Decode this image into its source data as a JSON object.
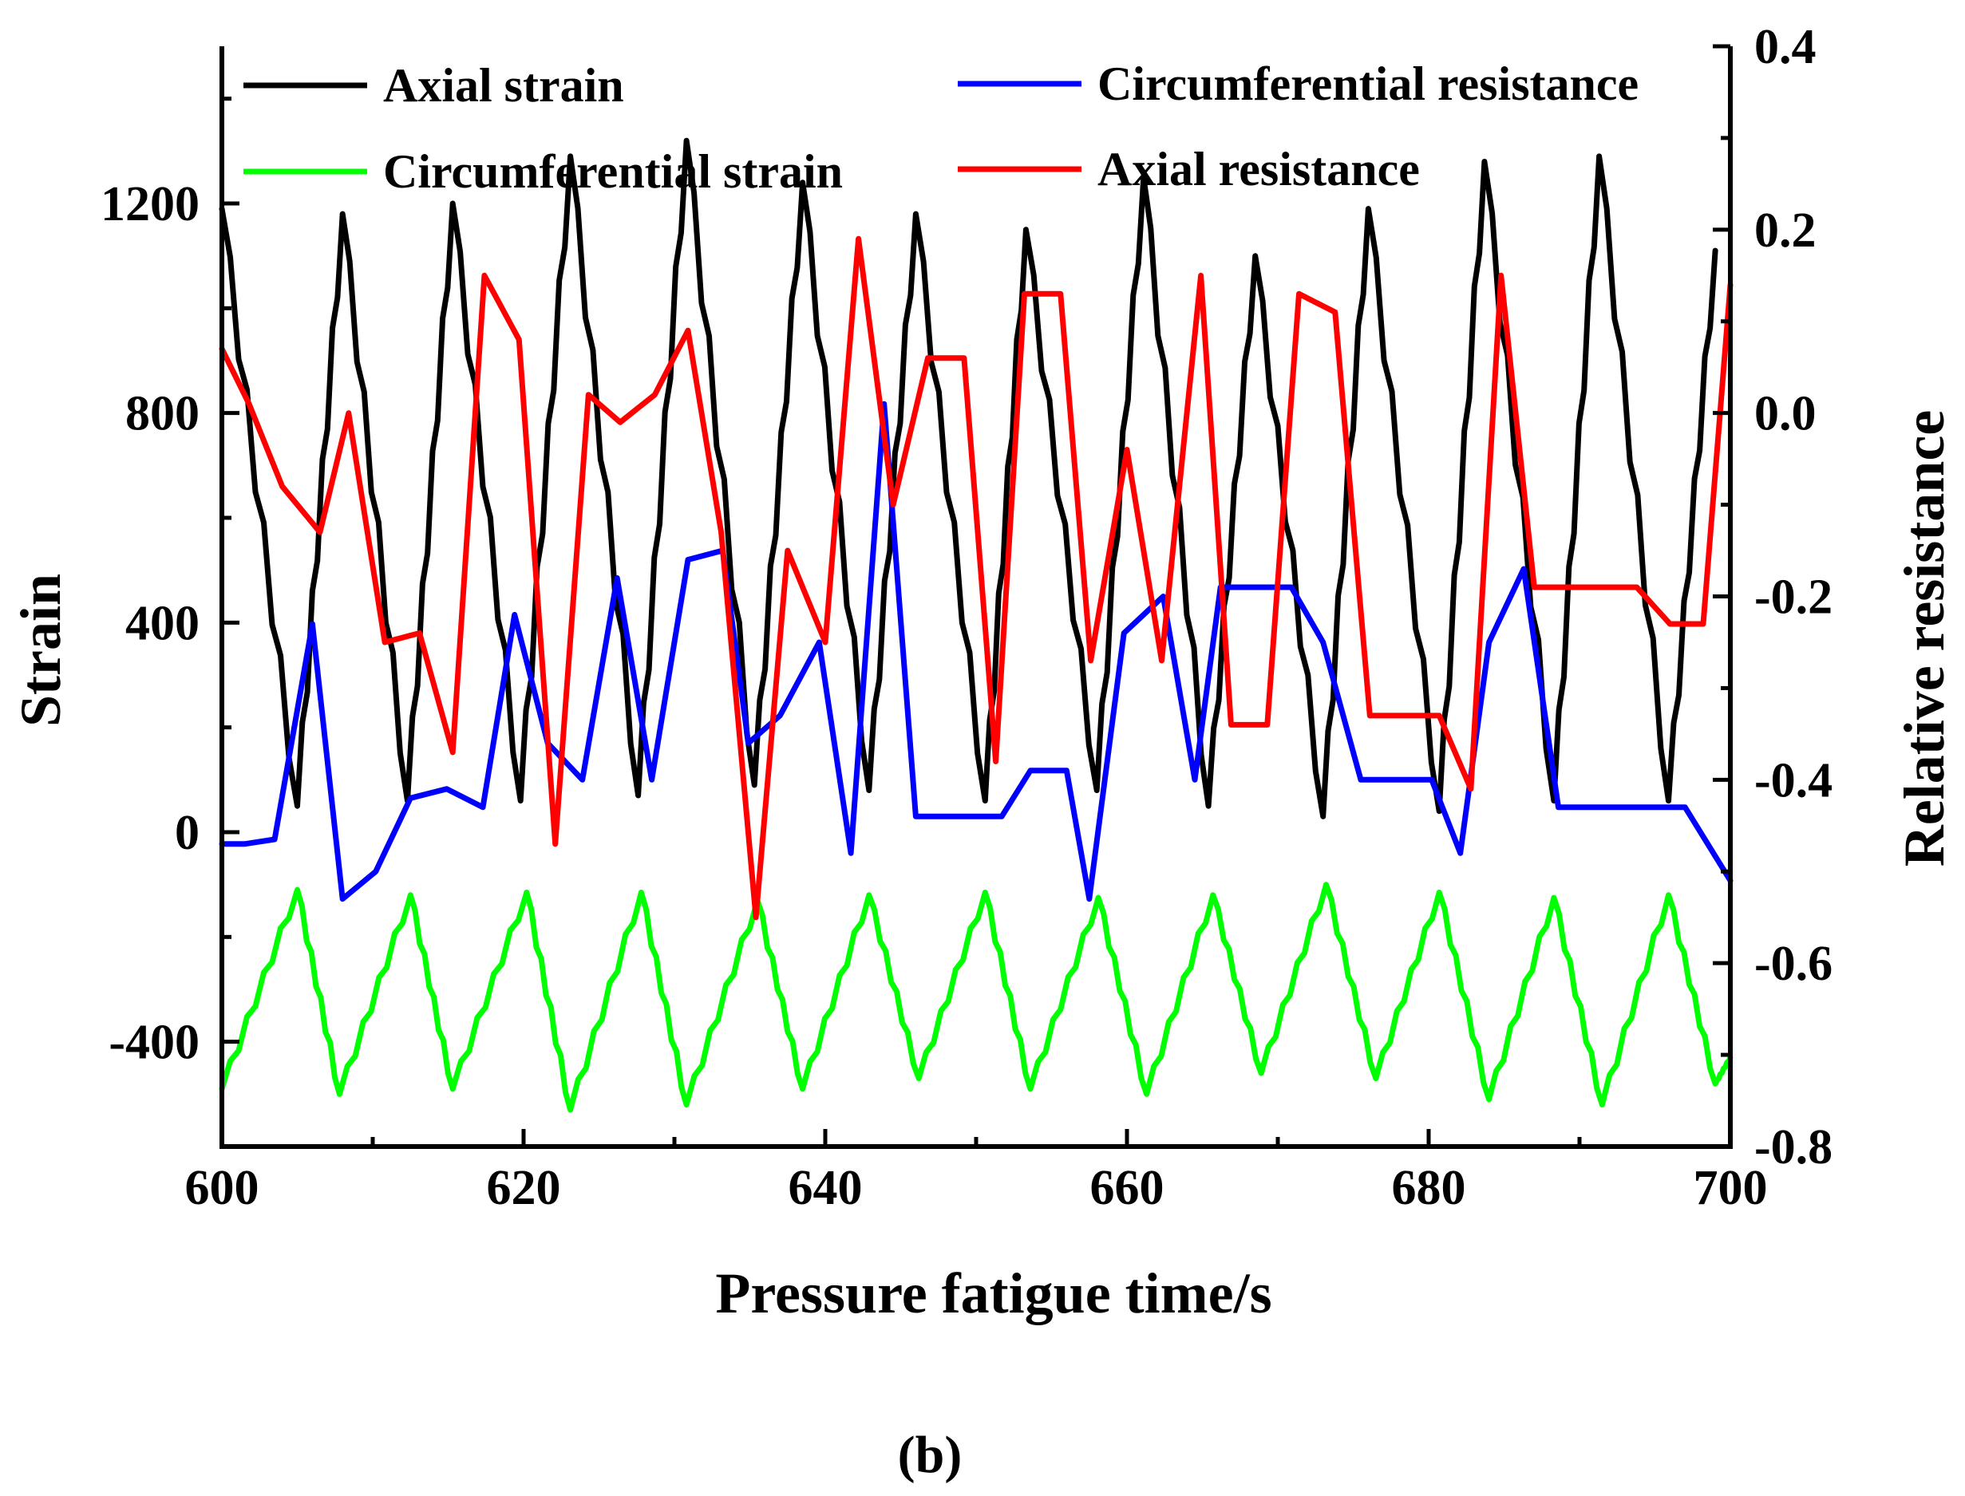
{
  "chart_data": {
    "type": "line",
    "caption": "(b)",
    "xlabel": "Pressure fatigue time/s",
    "ylabel": "Strain",
    "y2label": "Relative resistance",
    "xlim": [
      600,
      700
    ],
    "ylim": [
      -600,
      1500
    ],
    "y2lim": [
      -0.8,
      0.4
    ],
    "xticks": [
      600,
      620,
      640,
      660,
      680,
      700
    ],
    "yticks": [
      -400,
      0,
      400,
      800,
      1200
    ],
    "y2ticks": [
      -0.8,
      -0.6,
      -0.4,
      -0.2,
      0.0,
      0.2,
      0.4
    ],
    "xtick_labels": [
      "600",
      "620",
      "640",
      "660",
      "680",
      "700"
    ],
    "ytick_labels": [
      "-400",
      "0",
      "400",
      "800",
      "1200"
    ],
    "y2tick_labels": [
      "-0.8",
      "-0.6",
      "-0.4",
      "-0.2",
      "0.0",
      "0.2",
      "0.4"
    ],
    "series": [
      {
        "name": "Axial strain",
        "axis": "left",
        "color": "#000000",
        "peaks": [
          [
            600,
            1190
          ],
          [
            608,
            1180
          ],
          [
            615.3,
            1200
          ],
          [
            623.1,
            1290
          ],
          [
            630.8,
            1320
          ],
          [
            638.5,
            1240
          ],
          [
            646,
            1180
          ],
          [
            653.3,
            1150
          ],
          [
            661.1,
            1250
          ],
          [
            668.5,
            1100
          ],
          [
            676,
            1190
          ],
          [
            683.7,
            1280
          ],
          [
            691.3,
            1290
          ],
          [
            699,
            1110
          ]
        ],
        "troughs": [
          [
            605,
            50
          ],
          [
            612.3,
            60
          ],
          [
            619.8,
            60
          ],
          [
            627.6,
            70
          ],
          [
            635.3,
            90
          ],
          [
            642.9,
            80
          ],
          [
            650.6,
            60
          ],
          [
            658,
            80
          ],
          [
            665.4,
            50
          ],
          [
            673,
            30
          ],
          [
            680.7,
            40
          ],
          [
            688.3,
            60
          ],
          [
            695.9,
            60
          ]
        ]
      },
      {
        "name": "Circumferential strain",
        "axis": "left",
        "color": "#00ff00",
        "peaks": [
          [
            605,
            -110
          ],
          [
            612.5,
            -120
          ],
          [
            620.2,
            -115
          ],
          [
            627.8,
            -115
          ],
          [
            635.5,
            -130
          ],
          [
            642.9,
            -120
          ],
          [
            650.6,
            -115
          ],
          [
            658.1,
            -125
          ],
          [
            665.7,
            -120
          ],
          [
            673.2,
            -100
          ],
          [
            680.7,
            -115
          ],
          [
            688.3,
            -125
          ],
          [
            695.9,
            -120
          ]
        ],
        "troughs": [
          [
            600,
            -490
          ],
          [
            607.8,
            -500
          ],
          [
            615.3,
            -490
          ],
          [
            623.1,
            -530
          ],
          [
            630.8,
            -520
          ],
          [
            638.5,
            -490
          ],
          [
            646.2,
            -470
          ],
          [
            653.6,
            -490
          ],
          [
            661.3,
            -500
          ],
          [
            668.9,
            -460
          ],
          [
            676.5,
            -470
          ],
          [
            684,
            -510
          ],
          [
            691.5,
            -520
          ],
          [
            699,
            -480
          ],
          [
            700,
            -430
          ]
        ]
      },
      {
        "name": "Circumferential resistance",
        "axis": "right",
        "color": "#0000ff",
        "points": [
          [
            600,
            -0.47
          ],
          [
            601.5,
            -0.47
          ],
          [
            603.5,
            -0.465
          ],
          [
            606,
            -0.23
          ],
          [
            608,
            -0.53
          ],
          [
            610.2,
            -0.5
          ],
          [
            612.5,
            -0.42
          ],
          [
            614.9,
            -0.41
          ],
          [
            617.3,
            -0.43
          ],
          [
            619.4,
            -0.22
          ],
          [
            621.6,
            -0.36
          ],
          [
            623.9,
            -0.4
          ],
          [
            626.2,
            -0.18
          ],
          [
            628.5,
            -0.4
          ],
          [
            630.9,
            -0.16
          ],
          [
            633.2,
            -0.15
          ],
          [
            634.9,
            -0.36
          ],
          [
            637,
            -0.33
          ],
          [
            639.6,
            -0.25
          ],
          [
            641.7,
            -0.48
          ],
          [
            643.9,
            0.01
          ],
          [
            646,
            -0.44
          ],
          [
            648,
            -0.44
          ],
          [
            650.3,
            -0.44
          ],
          [
            651.7,
            -0.44
          ],
          [
            653.6,
            -0.39
          ],
          [
            656,
            -0.39
          ],
          [
            657.5,
            -0.53
          ],
          [
            659.8,
            -0.24
          ],
          [
            662.4,
            -0.2
          ],
          [
            664.5,
            -0.4
          ],
          [
            666.2,
            -0.19
          ],
          [
            668.8,
            -0.19
          ],
          [
            670.9,
            -0.19
          ],
          [
            673,
            -0.25
          ],
          [
            675.5,
            -0.4
          ],
          [
            678,
            -0.4
          ],
          [
            680.2,
            -0.4
          ],
          [
            682.1,
            -0.48
          ],
          [
            684,
            -0.25
          ],
          [
            686.3,
            -0.17
          ],
          [
            688.6,
            -0.43
          ],
          [
            690.5,
            -0.43
          ],
          [
            694.6,
            -0.43
          ],
          [
            697,
            -0.43
          ],
          [
            700,
            -0.51
          ]
        ]
      },
      {
        "name": "Axial resistance",
        "axis": "right",
        "color": "#ff0000",
        "points": [
          [
            600,
            0.07
          ],
          [
            601.8,
            0.01
          ],
          [
            604,
            -0.08
          ],
          [
            606.5,
            -0.13
          ],
          [
            608.4,
            0.0
          ],
          [
            610.8,
            -0.25
          ],
          [
            613.1,
            -0.24
          ],
          [
            615.3,
            -0.37
          ],
          [
            617.4,
            0.15
          ],
          [
            619.7,
            0.08
          ],
          [
            622.1,
            -0.47
          ],
          [
            624.3,
            0.02
          ],
          [
            626.4,
            -0.01
          ],
          [
            628.7,
            0.02
          ],
          [
            630.9,
            0.09
          ],
          [
            633.1,
            -0.13
          ],
          [
            635.4,
            -0.55
          ],
          [
            637.5,
            -0.15
          ],
          [
            640,
            -0.25
          ],
          [
            642.2,
            0.19
          ],
          [
            644.5,
            -0.1
          ],
          [
            646.8,
            0.06
          ],
          [
            649.2,
            0.06
          ],
          [
            651.3,
            -0.38
          ],
          [
            653.2,
            0.13
          ],
          [
            655.6,
            0.13
          ],
          [
            657.6,
            -0.27
          ],
          [
            660,
            -0.04
          ],
          [
            662.3,
            -0.27
          ],
          [
            664.9,
            0.15
          ],
          [
            666.9,
            -0.34
          ],
          [
            669.3,
            -0.34
          ],
          [
            671.4,
            0.13
          ],
          [
            673.8,
            0.11
          ],
          [
            676.1,
            -0.33
          ],
          [
            678.3,
            -0.33
          ],
          [
            680.7,
            -0.33
          ],
          [
            682.8,
            -0.41
          ],
          [
            684.8,
            0.15
          ],
          [
            687,
            -0.19
          ],
          [
            689.3,
            -0.19
          ],
          [
            691.4,
            -0.19
          ],
          [
            693.8,
            -0.19
          ],
          [
            696,
            -0.23
          ],
          [
            698.2,
            -0.23
          ],
          [
            700,
            0.14
          ]
        ]
      }
    ]
  }
}
